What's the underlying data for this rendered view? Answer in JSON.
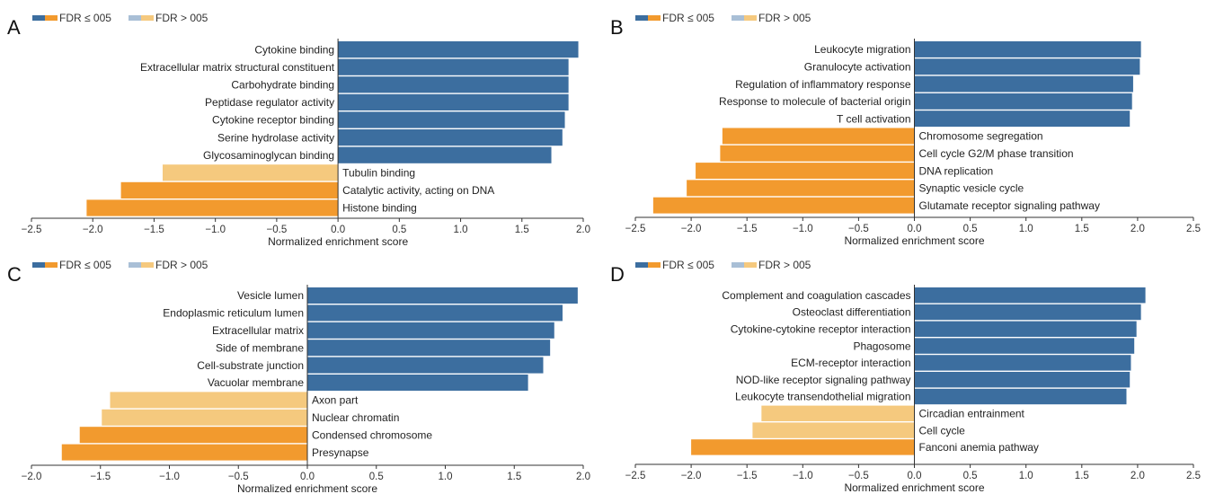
{
  "colors": {
    "up_sig": "#3c6e9f",
    "down_sig": "#f29a2e",
    "up_nonsig": "#a9bfd6",
    "down_nonsig": "#f5c97e",
    "axis": "#333333"
  },
  "chart_data": [
    {
      "type": "bar",
      "orientation": "horizontal",
      "panel_letter": "A",
      "legend": [
        "FDR ≤ 005",
        "FDR > 005"
      ],
      "xlabel": "Normalized enrichment score",
      "xlim": [
        -2.5,
        2.0
      ],
      "xticks": [
        "−2.5",
        "−2.0",
        "−1.5",
        "−1.0",
        "−0.5",
        "0.0",
        "0.5",
        "1.0",
        "1.5",
        "2.0"
      ],
      "categories": [
        "Cytokine binding",
        "Extracellular matrix structural constituent",
        "Carbohydrate binding",
        "Peptidase regulator activity",
        "Cytokine receptor binding",
        "Serine hydrolase activity",
        "Glycosaminoglycan binding",
        "Tubulin binding",
        "Catalytic activity, acting on DNA",
        "Histone binding"
      ],
      "values": [
        1.96,
        1.88,
        1.88,
        1.88,
        1.85,
        1.83,
        1.74,
        -1.43,
        -1.77,
        -2.05
      ],
      "significant": [
        true,
        true,
        true,
        true,
        true,
        true,
        true,
        false,
        true,
        true
      ]
    },
    {
      "type": "bar",
      "orientation": "horizontal",
      "panel_letter": "B",
      "legend": [
        "FDR ≤ 005",
        "FDR > 005"
      ],
      "xlabel": "Normalized enrichment score",
      "xlim": [
        -2.5,
        2.5
      ],
      "xticks": [
        "−2.5",
        "−2.0",
        "−1.5",
        "−1.0",
        "−0.5",
        "0.0",
        "0.5",
        "1.0",
        "1.5",
        "2.0",
        "2.5"
      ],
      "categories": [
        "Leukocyte migration",
        "Granulocyte activation",
        "Regulation of inflammatory response",
        "Response to molecule of bacterial origin",
        "T cell activation",
        "Chromosome segregation",
        "Cell cycle G2/M phase transition",
        "DNA replication",
        "Synaptic vesicle cycle",
        "Glutamate receptor signaling pathway"
      ],
      "values": [
        2.03,
        2.02,
        1.96,
        1.95,
        1.93,
        -1.72,
        -1.74,
        -1.96,
        -2.04,
        -2.34
      ],
      "significant": [
        true,
        true,
        true,
        true,
        true,
        true,
        true,
        true,
        true,
        true
      ]
    },
    {
      "type": "bar",
      "orientation": "horizontal",
      "panel_letter": "C",
      "legend": [
        "FDR ≤ 005",
        "FDR > 005"
      ],
      "xlabel": "Normalized enrichment score",
      "xlim": [
        -2.0,
        2.0
      ],
      "xticks": [
        "−2.0",
        "−1.5",
        "−1.0",
        "−0.5",
        "0.0",
        "0.5",
        "1.0",
        "1.5",
        "2.0"
      ],
      "categories": [
        "Vesicle lumen",
        "Endoplasmic reticulum lumen",
        "Extracellular matrix",
        "Side of membrane",
        "Cell-substrate junction",
        "Vacuolar membrane",
        "Axon part",
        "Nuclear chromatin",
        "Condensed chromosome",
        "Presynapse"
      ],
      "values": [
        1.96,
        1.85,
        1.79,
        1.76,
        1.71,
        1.6,
        -1.43,
        -1.49,
        -1.65,
        -1.78
      ],
      "significant": [
        true,
        true,
        true,
        true,
        true,
        true,
        false,
        false,
        true,
        true
      ]
    },
    {
      "type": "bar",
      "orientation": "horizontal",
      "panel_letter": "D",
      "legend": [
        "FDR ≤ 005",
        "FDR > 005"
      ],
      "xlabel": "Normalized enrichment score",
      "xlim": [
        -2.5,
        2.5
      ],
      "xticks": [
        "−2.5",
        "−2.0",
        "−1.5",
        "−1.0",
        "−0.5",
        "0.0",
        "0.5",
        "1.0",
        "1.5",
        "2.0",
        "2.5"
      ],
      "categories": [
        "Complement and coagulation cascades",
        "Osteoclast differentiation",
        "Cytokine-cytokine receptor interaction",
        "Phagosome",
        "ECM-receptor interaction",
        "NOD-like receptor signaling pathway",
        "Leukocyte transendothelial migration",
        "Circadian entrainment",
        "Cell cycle",
        "Fanconi anemia pathway"
      ],
      "values": [
        2.07,
        2.03,
        1.99,
        1.97,
        1.94,
        1.93,
        1.9,
        -1.37,
        -1.45,
        -2.0
      ],
      "significant": [
        true,
        true,
        true,
        true,
        true,
        true,
        true,
        false,
        false,
        true
      ]
    }
  ]
}
